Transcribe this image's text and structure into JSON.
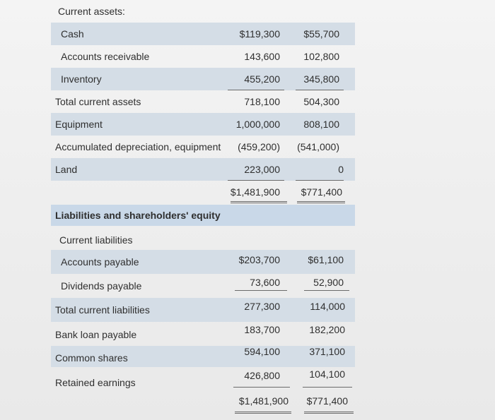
{
  "assets": {
    "section_label": "Current assets:",
    "rows": [
      {
        "label": "Cash",
        "v1": "$119,300",
        "v2": "$55,700"
      },
      {
        "label": "Accounts receivable",
        "v1": "143,600",
        "v2": "102,800"
      },
      {
        "label": "Inventory",
        "v1": "455,200",
        "v2": "345,800"
      },
      {
        "label": "Total current assets",
        "v1": "718,100",
        "v2": "504,300"
      },
      {
        "label": "Equipment",
        "v1": "1,000,000",
        "v2": "808,100"
      },
      {
        "label": "Accumulated depreciation, equipment",
        "v1": "(459,200)",
        "v2": "(541,000)"
      },
      {
        "label": "Land",
        "v1": "223,000",
        "v2": "0"
      }
    ],
    "total": {
      "v1": "$1,481,900",
      "v2": "$771,400"
    }
  },
  "liabilities": {
    "section_label": "Liabilities and shareholders' equity",
    "subsection_label": "Current liabilities",
    "rows": [
      {
        "label": "Accounts payable",
        "v1": "$203,700",
        "v2": "$61,100"
      },
      {
        "label": "Dividends payable",
        "v1": "73,600",
        "v2": "52,900"
      },
      {
        "label": "Total current liabilities",
        "v1": "277,300",
        "v2": "114,000"
      },
      {
        "label": "Bank loan payable",
        "v1": "183,700",
        "v2": "182,200"
      },
      {
        "label": "Common shares",
        "v1": "594,100",
        "v2": "371,100"
      },
      {
        "label": "Retained earnings",
        "v1": "426,800",
        "v2": "104,100"
      }
    ],
    "total": {
      "v1": "$1,481,900",
      "v2": "$771,400"
    }
  }
}
